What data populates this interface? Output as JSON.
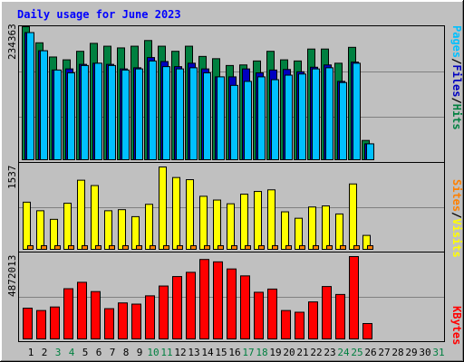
{
  "title": "Daily usage for June 2023",
  "colors": {
    "background": "#c0c0c0",
    "hits": "#008040",
    "files": "#0000c0",
    "pages": "#00c0ff",
    "visits": "#ffff00",
    "sites": "#ff8000",
    "kbytes": "#ff0000",
    "title": "#0000ff",
    "weekend_day": "#008040",
    "weekday": "#000000"
  },
  "labels": {
    "pages": "Pages",
    "files": "Files",
    "hits": "Hits",
    "sites": "Sites",
    "visits": "Visits",
    "kbytes": "KBytes",
    "sep": "/"
  },
  "chart_data": [
    {
      "type": "bar",
      "panel": "hits-files-pages",
      "ymax_label": "234363",
      "ylim": [
        0,
        234363
      ],
      "grid": true,
      "categories": [
        "1",
        "2",
        "3",
        "4",
        "5",
        "6",
        "7",
        "8",
        "9",
        "10",
        "11",
        "12",
        "13",
        "14",
        "15",
        "16",
        "17",
        "18",
        "19",
        "20",
        "21",
        "22",
        "23",
        "24",
        "25",
        "26",
        "27",
        "28",
        "29",
        "30",
        "31"
      ],
      "series": [
        {
          "name": "Hits",
          "values": [
            234363,
            206000,
            181000,
            176000,
            191000,
            205000,
            200000,
            197000,
            200000,
            210000,
            200000,
            191000,
            200000,
            182000,
            178000,
            166000,
            167000,
            174000,
            191000,
            176000,
            174000,
            195000,
            195000,
            170000,
            198000,
            34000,
            0,
            0,
            0,
            0,
            0
          ]
        },
        {
          "name": "Files",
          "values": [
            224000,
            192000,
            158000,
            160000,
            168000,
            170000,
            168000,
            160000,
            162000,
            180000,
            173000,
            164000,
            170000,
            160000,
            146000,
            146000,
            160000,
            153000,
            158000,
            159000,
            155000,
            163000,
            167000,
            138000,
            172000,
            28000,
            0,
            0,
            0,
            0,
            0
          ]
        },
        {
          "name": "Pages",
          "values": [
            224000,
            192000,
            158000,
            153000,
            166000,
            170000,
            166000,
            158000,
            160000,
            174000,
            164000,
            160000,
            162000,
            153000,
            146000,
            131000,
            138000,
            146000,
            141000,
            149000,
            151000,
            160000,
            162000,
            136000,
            170000,
            28000,
            0,
            0,
            0,
            0,
            0
          ]
        }
      ]
    },
    {
      "type": "bar",
      "panel": "visits-sites",
      "ymax_label": "1537",
      "ylim": [
        0,
        1537
      ],
      "grid": true,
      "categories": [
        "1",
        "2",
        "3",
        "4",
        "5",
        "6",
        "7",
        "8",
        "9",
        "10",
        "11",
        "12",
        "13",
        "14",
        "15",
        "16",
        "17",
        "18",
        "19",
        "20",
        "21",
        "22",
        "23",
        "24",
        "25",
        "26",
        "27",
        "28",
        "29",
        "30",
        "31"
      ],
      "series": [
        {
          "name": "Visits",
          "values": [
            880,
            720,
            560,
            860,
            1290,
            1190,
            720,
            740,
            610,
            840,
            1537,
            1340,
            1300,
            990,
            920,
            850,
            1030,
            1080,
            1110,
            700,
            580,
            790,
            810,
            660,
            1220,
            260,
            0,
            0,
            0,
            0,
            0
          ]
        },
        {
          "name": "Sites",
          "values": [
            70,
            70,
            70,
            70,
            70,
            70,
            70,
            70,
            70,
            70,
            70,
            70,
            70,
            70,
            70,
            70,
            70,
            70,
            70,
            70,
            70,
            70,
            70,
            70,
            70,
            50,
            0,
            0,
            0,
            0,
            0
          ]
        }
      ]
    },
    {
      "type": "bar",
      "panel": "kbytes",
      "ymax_label": "4872013",
      "ylim": [
        0,
        4872013
      ],
      "grid": true,
      "categories": [
        "1",
        "2",
        "3",
        "4",
        "5",
        "6",
        "7",
        "8",
        "9",
        "10",
        "11",
        "12",
        "13",
        "14",
        "15",
        "16",
        "17",
        "18",
        "19",
        "20",
        "21",
        "22",
        "23",
        "24",
        "25",
        "26",
        "27",
        "28",
        "29",
        "30",
        "31"
      ],
      "series": [
        {
          "name": "KBytes",
          "values": [
            1820000,
            1680000,
            1890000,
            2970000,
            3350000,
            2800000,
            1790000,
            2130000,
            2060000,
            2550000,
            3130000,
            3690000,
            3940000,
            4700000,
            4560000,
            4140000,
            3730000,
            2760000,
            2950000,
            1680000,
            1580000,
            2190000,
            3100000,
            2630000,
            4872013,
            910000,
            0,
            0,
            0,
            0,
            0
          ]
        }
      ]
    }
  ]
}
